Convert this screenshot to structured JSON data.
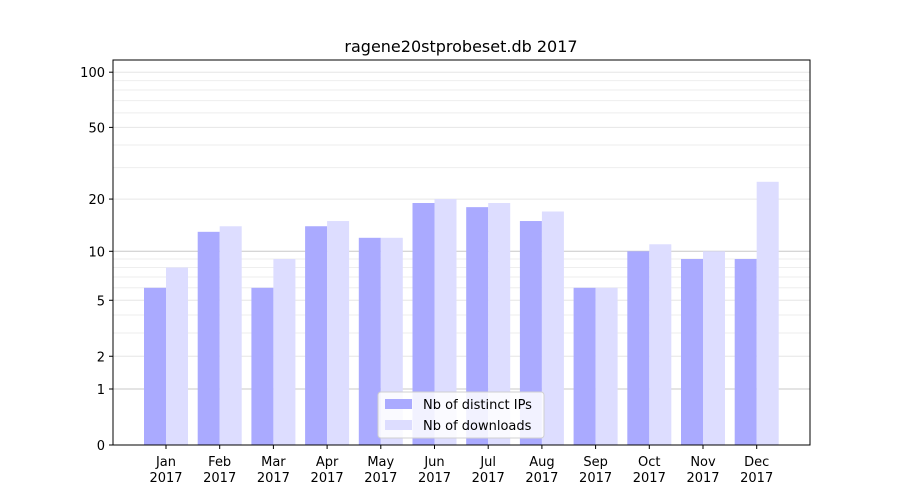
{
  "chart_data": {
    "type": "bar",
    "title": "ragene20stprobeset.db 2017",
    "xlabel": "",
    "ylabel": "",
    "yscale": "symlog",
    "ylim": [
      0,
      110
    ],
    "yticks": [
      0,
      1,
      2,
      5,
      10,
      20,
      50,
      100
    ],
    "categories": [
      "Jan\n2017",
      "Feb\n2017",
      "Mar\n2017",
      "Apr\n2017",
      "May\n2017",
      "Jun\n2017",
      "Jul\n2017",
      "Aug\n2017",
      "Sep\n2017",
      "Oct\n2017",
      "Nov\n2017",
      "Dec\n2017"
    ],
    "series": [
      {
        "name": "Nb of distinct IPs",
        "color": "#aaaaff",
        "values": [
          6,
          13,
          6,
          14,
          12,
          19,
          18,
          15,
          6,
          10,
          9,
          9
        ]
      },
      {
        "name": "Nb of downloads",
        "color": "#ddddff",
        "values": [
          8,
          14,
          9,
          15,
          12,
          20,
          19,
          17,
          6,
          11,
          10,
          25
        ]
      }
    ],
    "legend": "bottom-center",
    "grid": true
  }
}
